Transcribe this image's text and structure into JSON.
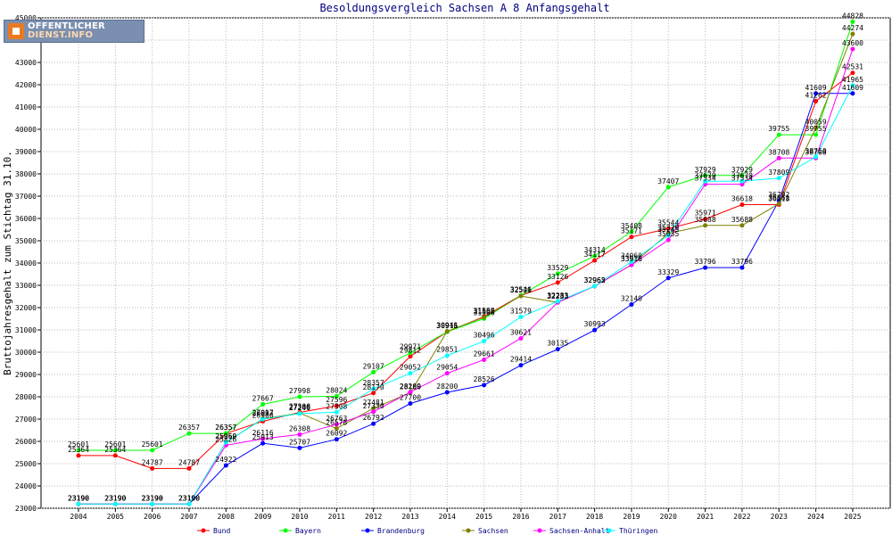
{
  "chart_data": {
    "type": "line",
    "title": "Besoldungsvergleich Sachsen A 8 Anfangsgehalt",
    "ylabel": "Bruttojahresgehalt zum Stichtag 31.10.",
    "xlabel": "",
    "ylim": [
      23000,
      45000
    ],
    "yticks": [
      23000,
      24000,
      25000,
      26000,
      27000,
      28000,
      29000,
      30000,
      31000,
      32000,
      33000,
      34000,
      35000,
      36000,
      37000,
      38000,
      39000,
      40000,
      41000,
      42000,
      43000,
      44000,
      45000
    ],
    "categories": [
      "2004",
      "2005",
      "2006",
      "2007",
      "2008",
      "2009",
      "2010",
      "2011",
      "2012",
      "2013",
      "2014",
      "2015",
      "2016",
      "2017",
      "2018",
      "2019",
      "2020",
      "2021",
      "2022",
      "2023",
      "2024",
      "2025"
    ],
    "grid": true,
    "legend_position": "bottom",
    "series": [
      {
        "name": "Bund",
        "color": "#ff0000",
        "values": [
          25364,
          25364,
          24787,
          24787,
          26357,
          26900,
          27300,
          27596,
          28170,
          29812,
          30915,
          31598,
          32546,
          33126,
          34117,
          35171,
          35544,
          35971,
          36618,
          36618,
          41262,
          42531
        ]
      },
      {
        "name": "Bayern",
        "color": "#00ff00",
        "values": [
          25601,
          25601,
          25601,
          26357,
          26357,
          27667,
          27998,
          28024,
          29107,
          29971,
          30916,
          31506,
          32546,
          33529,
          34314,
          35408,
          37407,
          37929,
          37929,
          39755,
          39755,
          44828
        ]
      },
      {
        "name": "Brandenburg",
        "color": "#0000ff",
        "values": [
          23190,
          23190,
          23190,
          23190,
          24922,
          25913,
          25707,
          26092,
          26792,
          27700,
          28200,
          28526,
          29414,
          30135,
          30993,
          32140,
          33329,
          33796,
          33796,
          36792,
          41609,
          41609
        ]
      },
      {
        "name": "Sachsen",
        "color": "#808000",
        "values": [
          23190,
          23190,
          23190,
          23190,
          25960,
          27017,
          27266,
          26578,
          27481,
          28180,
          30941,
          31566,
          32521,
          32233,
          32962,
          33916,
          35329,
          35688,
          35688,
          36661,
          40059,
          44274
        ]
      },
      {
        "name": "Sachsen-Anhalt",
        "color": "#ff00ff",
        "values": [
          23190,
          23190,
          23190,
          23190,
          25826,
          26116,
          26308,
          26763,
          27330,
          28209,
          29054,
          29661,
          30621,
          32233,
          32962,
          33916,
          35035,
          37534,
          37534,
          38708,
          38708,
          43600
        ]
      },
      {
        "name": "Thüringen",
        "color": "#00ffff",
        "values": [
          23190,
          23190,
          23190,
          23190,
          25959,
          26997,
          27246,
          27308,
          28357,
          29052,
          29851,
          30496,
          31579,
          32283,
          32965,
          34060,
          35245,
          37670,
          37670,
          37809,
          38760,
          41965
        ]
      }
    ],
    "logo_text": [
      "OFFENTLICHER",
      "DIENST.INFO"
    ]
  }
}
